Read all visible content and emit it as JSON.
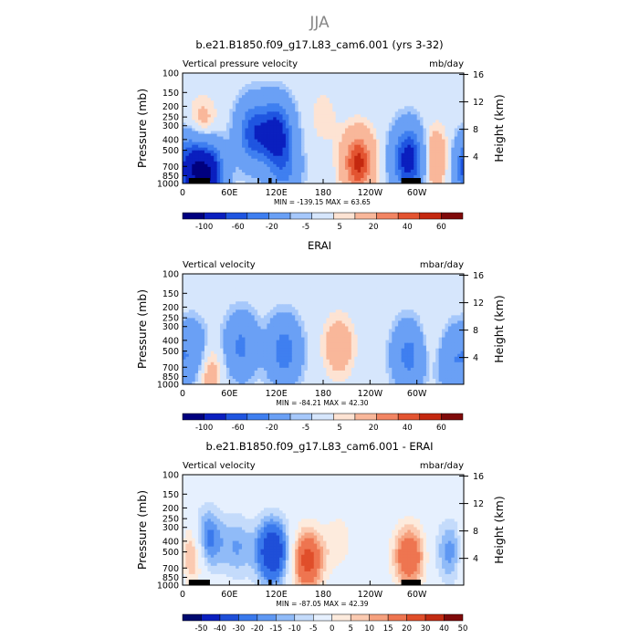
{
  "figure": {
    "title": "JJA",
    "colors": {
      "scale12": [
        "#00007f",
        "#0a1fbf",
        "#1f55e0",
        "#3f7ff0",
        "#6aa0f5",
        "#a6c8fb",
        "#d6e6fc",
        "#fde3d3",
        "#f9b79a",
        "#f28563",
        "#e35431",
        "#c4280f",
        "#7f0a0a"
      ],
      "scale14": [
        "#000a6f",
        "#0a1fbf",
        "#1f4fd8",
        "#3a79ec",
        "#5f98f3",
        "#90bbf8",
        "#c4dbfb",
        "#e6f0fe",
        "#fdebdd",
        "#fbcab1",
        "#f6a17e",
        "#ee7550",
        "#e04e2a",
        "#c22b12",
        "#7f0a0a"
      ]
    },
    "panels": [
      {
        "id": "model",
        "title": "b.e21.B1850.f09_g17.L83_cam6.001 (yrs 3-32)",
        "left_label": "Vertical pressure velocity",
        "right_label": "mb/day",
        "stats": "MIN = -139.15   MAX =  63.65",
        "colorbar": "scale12",
        "labelbar_ticks": [
          "-100",
          "-60",
          "-20",
          "-5",
          "5",
          "20",
          "40",
          "60"
        ],
        "chart_data": {
          "type": "heatmap",
          "variable": "Vertical pressure velocity",
          "units": "mb/day",
          "x_name": "longitude",
          "x_range": [
            0,
            360
          ],
          "y_name": "pressure (mb)",
          "y_range": [
            1000,
            100
          ],
          "contour_levels": [
            -120,
            -100,
            -80,
            -60,
            -40,
            -20,
            -10,
            -5,
            0,
            5,
            10,
            20,
            30,
            40,
            50,
            60,
            70
          ],
          "min": -139.15,
          "max": 63.65,
          "features": [
            {
              "lon": 10,
              "p": 700,
              "value": -90
            },
            {
              "lon": 25,
              "p": 350,
              "value": 25
            },
            {
              "lon": 33,
              "p": 800,
              "value": -110
            },
            {
              "lon": 90,
              "p": 350,
              "value": -70
            },
            {
              "lon": 120,
              "p": 350,
              "value": -90
            },
            {
              "lon": 130,
              "p": 750,
              "value": -40
            },
            {
              "lon": 180,
              "p": 250,
              "value": 8
            },
            {
              "lon": 225,
              "p": 650,
              "value": 55
            },
            {
              "lon": 290,
              "p": 600,
              "value": -100
            },
            {
              "lon": 320,
              "p": 600,
              "value": 30
            }
          ]
        }
      },
      {
        "id": "erai",
        "title": "ERAI",
        "left_label": "Vertical velocity",
        "right_label": "mbar/day",
        "stats": "MIN = -84.21   MAX =  42.30",
        "colorbar": "scale12",
        "labelbar_ticks": [
          "-100",
          "-60",
          "-20",
          "-5",
          "5",
          "20",
          "40",
          "60"
        ],
        "chart_data": {
          "type": "heatmap",
          "variable": "Vertical velocity",
          "units": "mbar/day",
          "x_name": "longitude",
          "x_range": [
            0,
            360
          ],
          "y_name": "pressure (mb)",
          "y_range": [
            1000,
            100
          ],
          "contour_levels": [
            -120,
            -100,
            -80,
            -60,
            -40,
            -20,
            -10,
            -5,
            0,
            5,
            10,
            20,
            30,
            40,
            50,
            60,
            70
          ],
          "min": -84.21,
          "max": 42.3,
          "features": [
            {
              "lon": 15,
              "p": 550,
              "value": -45
            },
            {
              "lon": 28,
              "p": 700,
              "value": 30
            },
            {
              "lon": 75,
              "p": 450,
              "value": -45
            },
            {
              "lon": 130,
              "p": 500,
              "value": -55
            },
            {
              "lon": 200,
              "p": 450,
              "value": 20
            },
            {
              "lon": 290,
              "p": 550,
              "value": -50
            },
            {
              "lon": 320,
              "p": 450,
              "value": 10
            },
            {
              "lon": 345,
              "p": 600,
              "value": -35
            }
          ]
        }
      },
      {
        "id": "diff",
        "title": "b.e21.B1850.f09_g17.L83_cam6.001 - ERAI",
        "left_label": "Vertical velocity",
        "right_label": "mbar/day",
        "stats": "MIN = -87.05   MAX =  42.39",
        "colorbar": "scale14",
        "labelbar_ticks": [
          "-50",
          "-40",
          "-30",
          "-20",
          "-15",
          "-10",
          "-5",
          "0",
          "5",
          "10",
          "15",
          "20",
          "30",
          "40",
          "50"
        ],
        "chart_data": {
          "type": "heatmap",
          "variable": "Vertical velocity difference",
          "units": "mbar/day",
          "x_name": "longitude",
          "x_range": [
            0,
            360
          ],
          "y_name": "pressure (mb)",
          "y_range": [
            1000,
            100
          ],
          "contour_levels": [
            -60,
            -50,
            -40,
            -30,
            -20,
            -15,
            -10,
            -5,
            0,
            5,
            10,
            15,
            20,
            30,
            40,
            50,
            60
          ],
          "min": -87.05,
          "max": 42.39,
          "features": [
            {
              "lon": 13,
              "p": 500,
              "value": 28
            },
            {
              "lon": 30,
              "p": 400,
              "value": -30
            },
            {
              "lon": 70,
              "p": 450,
              "value": -15
            },
            {
              "lon": 115,
              "p": 500,
              "value": -45
            },
            {
              "lon": 160,
              "p": 600,
              "value": 35
            },
            {
              "lon": 200,
              "p": 400,
              "value": 8
            },
            {
              "lon": 290,
              "p": 550,
              "value": 30
            },
            {
              "lon": 345,
              "p": 500,
              "value": -20
            }
          ]
        }
      }
    ],
    "y_left_label": "Pressure (mb)",
    "y_right_label": "Height (km)",
    "pressure_ticks": [
      100,
      150,
      200,
      250,
      300,
      400,
      500,
      700,
      850,
      1000
    ],
    "height_ticks": [
      16,
      12,
      8,
      4
    ],
    "x_ticks": [
      {
        "lon": 0,
        "label": "0"
      },
      {
        "lon": 60,
        "label": "60E"
      },
      {
        "lon": 120,
        "label": "120E"
      },
      {
        "lon": 180,
        "label": "180"
      },
      {
        "lon": 240,
        "label": "120W"
      },
      {
        "lon": 300,
        "label": "60W"
      }
    ]
  }
}
